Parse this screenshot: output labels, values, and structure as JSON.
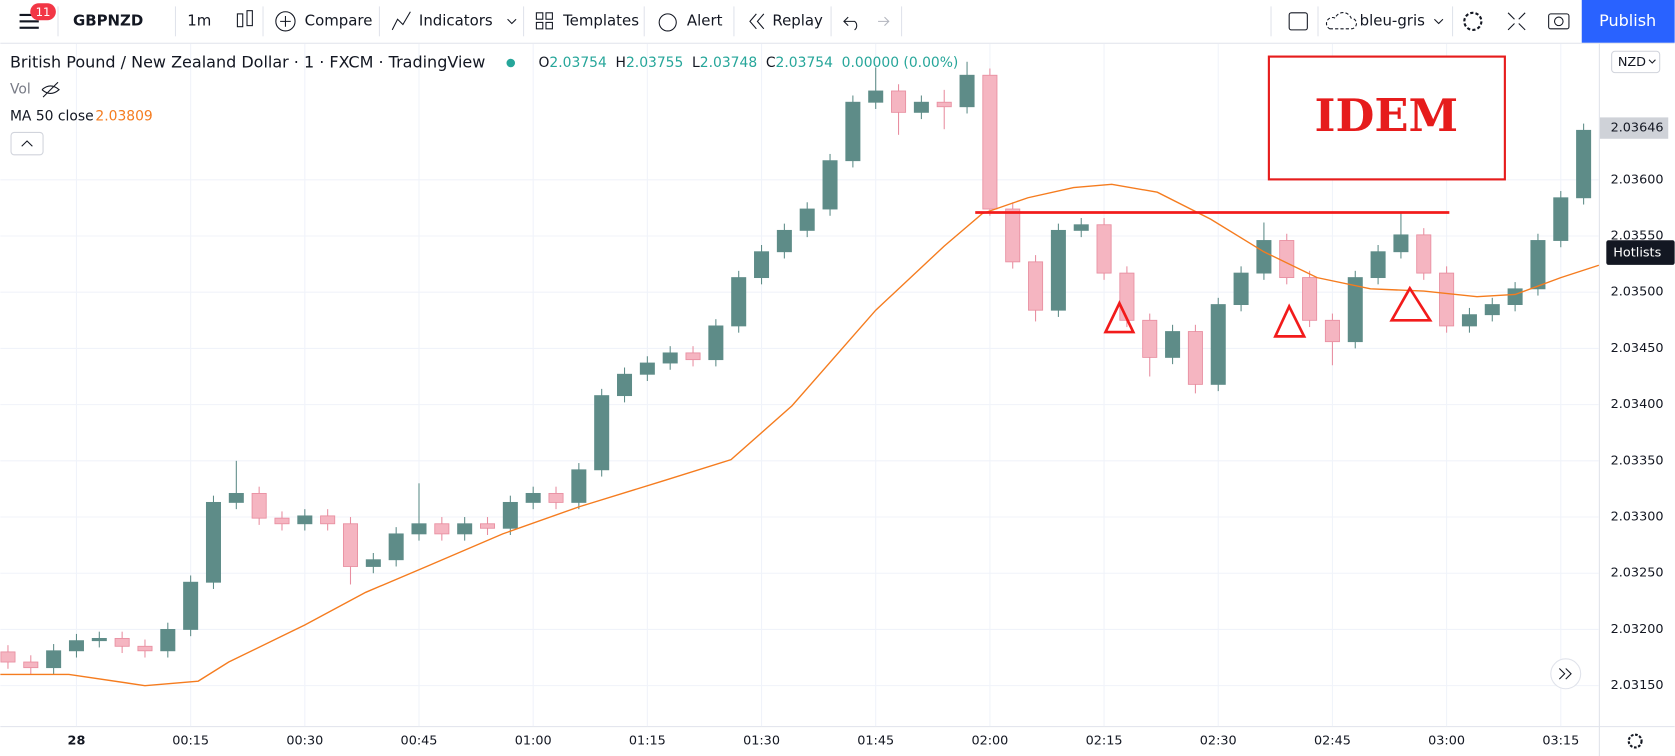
{
  "toolbar": {
    "badge": "11",
    "symbol": "GBPNZD",
    "interval": "1m",
    "compare": "Compare",
    "indicators": "Indicators",
    "templates": "Templates",
    "alert": "Alert",
    "replay": "Replay",
    "layout": "bleu-gris",
    "publish": "Publish"
  },
  "legend": {
    "title": "British Pound / New Zealand Dollar · 1 · FXCM · TradingView",
    "o_label": "O",
    "o": "2.03754",
    "h_label": "H",
    "h": "2.03755",
    "l_label": "L",
    "l": "2.03748",
    "c_label": "C",
    "c": "2.03754",
    "change": "0.00000 (0.00%)",
    "vol": "Vol",
    "ma_label": "MA 50 close",
    "ma_value": "2.03809"
  },
  "currency": "NZD",
  "hotlists": "Hotlists",
  "annotation": "IDEM",
  "chart_data": {
    "type": "candlestick",
    "x": [
      "23:51",
      "23:54",
      "23:57",
      "00:00",
      "00:03",
      "00:06",
      "00:09",
      "00:12",
      "00:15",
      "00:18",
      "00:21",
      "00:24",
      "00:27",
      "00:30",
      "00:33",
      "00:36",
      "00:39",
      "00:42",
      "00:45",
      "00:48",
      "00:51",
      "00:54",
      "00:57",
      "01:00",
      "01:03",
      "01:06",
      "01:09",
      "01:12",
      "01:15",
      "01:18",
      "01:21",
      "01:24",
      "01:27",
      "01:30",
      "01:33",
      "01:36",
      "01:39",
      "01:42",
      "01:45",
      "01:48",
      "01:51",
      "01:54",
      "01:57",
      "02:00",
      "02:03",
      "02:06",
      "02:09",
      "02:12",
      "02:15",
      "02:18",
      "02:21",
      "02:24",
      "02:27",
      "02:30",
      "02:33",
      "02:36",
      "02:39",
      "02:42",
      "02:45",
      "02:48",
      "02:51",
      "02:54",
      "02:57",
      "03:00",
      "03:03",
      "03:06",
      "03:09",
      "03:12",
      "03:15",
      "03:18"
    ],
    "open": [
      2.0318,
      2.03171,
      2.03166,
      2.03181,
      2.0319,
      2.03192,
      2.03185,
      2.03181,
      2.032,
      2.03242,
      2.03313,
      2.03321,
      2.03299,
      2.03294,
      2.03301,
      2.03294,
      2.03256,
      2.03262,
      2.03285,
      2.03294,
      2.03285,
      2.03294,
      2.0329,
      2.03313,
      2.03321,
      2.03313,
      2.03342,
      2.03408,
      2.03427,
      2.03437,
      2.03446,
      2.0344,
      2.0347,
      2.03513,
      2.03536,
      2.03555,
      2.03574,
      2.03617,
      2.03669,
      2.03679,
      2.0366,
      2.03669,
      2.03665,
      2.03693,
      2.03574,
      2.03527,
      2.03484,
      2.03555,
      2.0356,
      2.03517,
      2.03475,
      2.03442,
      2.03465,
      2.03418,
      2.03489,
      2.03517,
      2.03546,
      2.03513,
      2.03475,
      2.03456,
      2.03513,
      2.03536,
      2.03551,
      2.03517,
      2.0347,
      2.0348,
      2.03489,
      2.03503,
      2.03546,
      2.03584
    ],
    "high": [
      2.03186,
      2.03177,
      2.03187,
      2.03196,
      2.03198,
      2.03198,
      2.03191,
      2.03206,
      2.03248,
      2.03319,
      2.0335,
      2.03327,
      2.03305,
      2.03307,
      2.03307,
      2.033,
      2.03268,
      2.03291,
      2.0333,
      2.033,
      2.033,
      2.033,
      2.03319,
      2.03327,
      2.03327,
      2.03348,
      2.03414,
      2.03433,
      2.03443,
      2.03452,
      2.03452,
      2.03476,
      2.03519,
      2.03542,
      2.03561,
      2.0358,
      2.03623,
      2.03675,
      2.037,
      2.03685,
      2.03675,
      2.0368,
      2.03705,
      2.03699,
      2.0358,
      2.03533,
      2.03561,
      2.03566,
      2.03566,
      2.03523,
      2.03481,
      2.03471,
      2.03471,
      2.03495,
      2.03523,
      2.03562,
      2.03552,
      2.03519,
      2.03481,
      2.03519,
      2.03542,
      2.0357,
      2.03557,
      2.03523,
      2.03486,
      2.03495,
      2.03509,
      2.03552,
      2.0359,
      2.0365
    ],
    "low": [
      2.03165,
      2.0316,
      2.0316,
      2.03175,
      2.03184,
      2.03179,
      2.03175,
      2.03175,
      2.03194,
      2.03236,
      2.03307,
      2.03293,
      2.03288,
      2.03288,
      2.03288,
      2.0324,
      2.0325,
      2.03256,
      2.03279,
      2.03279,
      2.03279,
      2.03284,
      2.03284,
      2.03307,
      2.03307,
      2.03307,
      2.03336,
      2.03402,
      2.03421,
      2.03431,
      2.03434,
      2.03434,
      2.03464,
      2.03507,
      2.0353,
      2.03549,
      2.03568,
      2.03611,
      2.03663,
      2.0364,
      2.03654,
      2.03645,
      2.03659,
      2.03568,
      2.03521,
      2.03474,
      2.03478,
      2.03549,
      2.03511,
      2.03469,
      2.03425,
      2.03436,
      2.0341,
      2.03412,
      2.03483,
      2.03511,
      2.03507,
      2.03469,
      2.03435,
      2.0345,
      2.03507,
      2.0353,
      2.03511,
      2.03464,
      2.03464,
      2.03474,
      2.03483,
      2.03497,
      2.0354,
      2.03578
    ],
    "close": [
      2.03171,
      2.03166,
      2.03181,
      2.0319,
      2.03192,
      2.03185,
      2.03181,
      2.032,
      2.03242,
      2.03313,
      2.03321,
      2.03299,
      2.03294,
      2.03301,
      2.03294,
      2.03256,
      2.03262,
      2.03285,
      2.03294,
      2.03285,
      2.03294,
      2.0329,
      2.03313,
      2.03321,
      2.03313,
      2.03342,
      2.03408,
      2.03427,
      2.03437,
      2.03446,
      2.0344,
      2.0347,
      2.03513,
      2.03536,
      2.03555,
      2.03574,
      2.03617,
      2.03669,
      2.03679,
      2.0366,
      2.03669,
      2.03665,
      2.03693,
      2.03574,
      2.03527,
      2.03484,
      2.03555,
      2.0356,
      2.03517,
      2.03475,
      2.03442,
      2.03465,
      2.03418,
      2.03489,
      2.03517,
      2.03546,
      2.03513,
      2.03475,
      2.03456,
      2.03513,
      2.03536,
      2.03551,
      2.03517,
      2.0347,
      2.0348,
      2.03489,
      2.03503,
      2.03546,
      2.03584,
      2.03644
    ],
    "up_color": "#5e8c88",
    "down_color": "#f5b5c1",
    "down_edge": "#e88ea0",
    "ma": {
      "color": "#f57c1f",
      "x": [
        "23:50",
        "23:59",
        "00:09",
        "00:16",
        "00:20",
        "00:30",
        "00:38",
        "00:46",
        "00:56",
        "01:06",
        "01:17",
        "01:26",
        "01:34",
        "01:45",
        "01:54",
        "01:59",
        "02:05",
        "02:11",
        "02:16",
        "02:22",
        "02:29",
        "02:36",
        "02:43",
        "02:50",
        "02:57",
        "03:04",
        "03:09",
        "03:15",
        "03:20"
      ],
      "values": [
        2.0316,
        2.0316,
        2.0315,
        2.03154,
        2.03171,
        2.03204,
        2.03233,
        2.03256,
        2.03285,
        2.03309,
        2.03332,
        2.03351,
        2.03399,
        2.03484,
        2.03541,
        2.0357,
        2.03584,
        2.03593,
        2.03596,
        2.03589,
        2.03565,
        2.03536,
        2.03513,
        2.03503,
        2.03501,
        2.03496,
        2.03498,
        2.03513,
        2.03524
      ]
    },
    "last_price": 2.03646,
    "xlim": [
      "23:50",
      "03:20"
    ],
    "ylim": [
      2.03114,
      2.03721
    ],
    "yticks": [
      {
        "value": 2.0315,
        "label": "2.03150"
      },
      {
        "value": 2.032,
        "label": "2.03200"
      },
      {
        "value": 2.0325,
        "label": "2.03250"
      },
      {
        "value": 2.033,
        "label": "2.03300"
      },
      {
        "value": 2.0335,
        "label": "2.03350"
      },
      {
        "value": 2.034,
        "label": "2.03400"
      },
      {
        "value": 2.0345,
        "label": "2.03450"
      },
      {
        "value": 2.035,
        "label": "2.03500"
      },
      {
        "value": 2.0355,
        "label": "2.03550"
      },
      {
        "value": 2.036,
        "label": "2.03600"
      }
    ],
    "xticks": [
      {
        "value": "00:00",
        "label": "28"
      },
      "00:15",
      "00:30",
      "00:45",
      "01:00",
      "01:15",
      "01:30",
      "01:45",
      "02:00",
      "02:15",
      "02:30",
      "02:45",
      "03:00",
      "03:15"
    ],
    "grid": true
  }
}
